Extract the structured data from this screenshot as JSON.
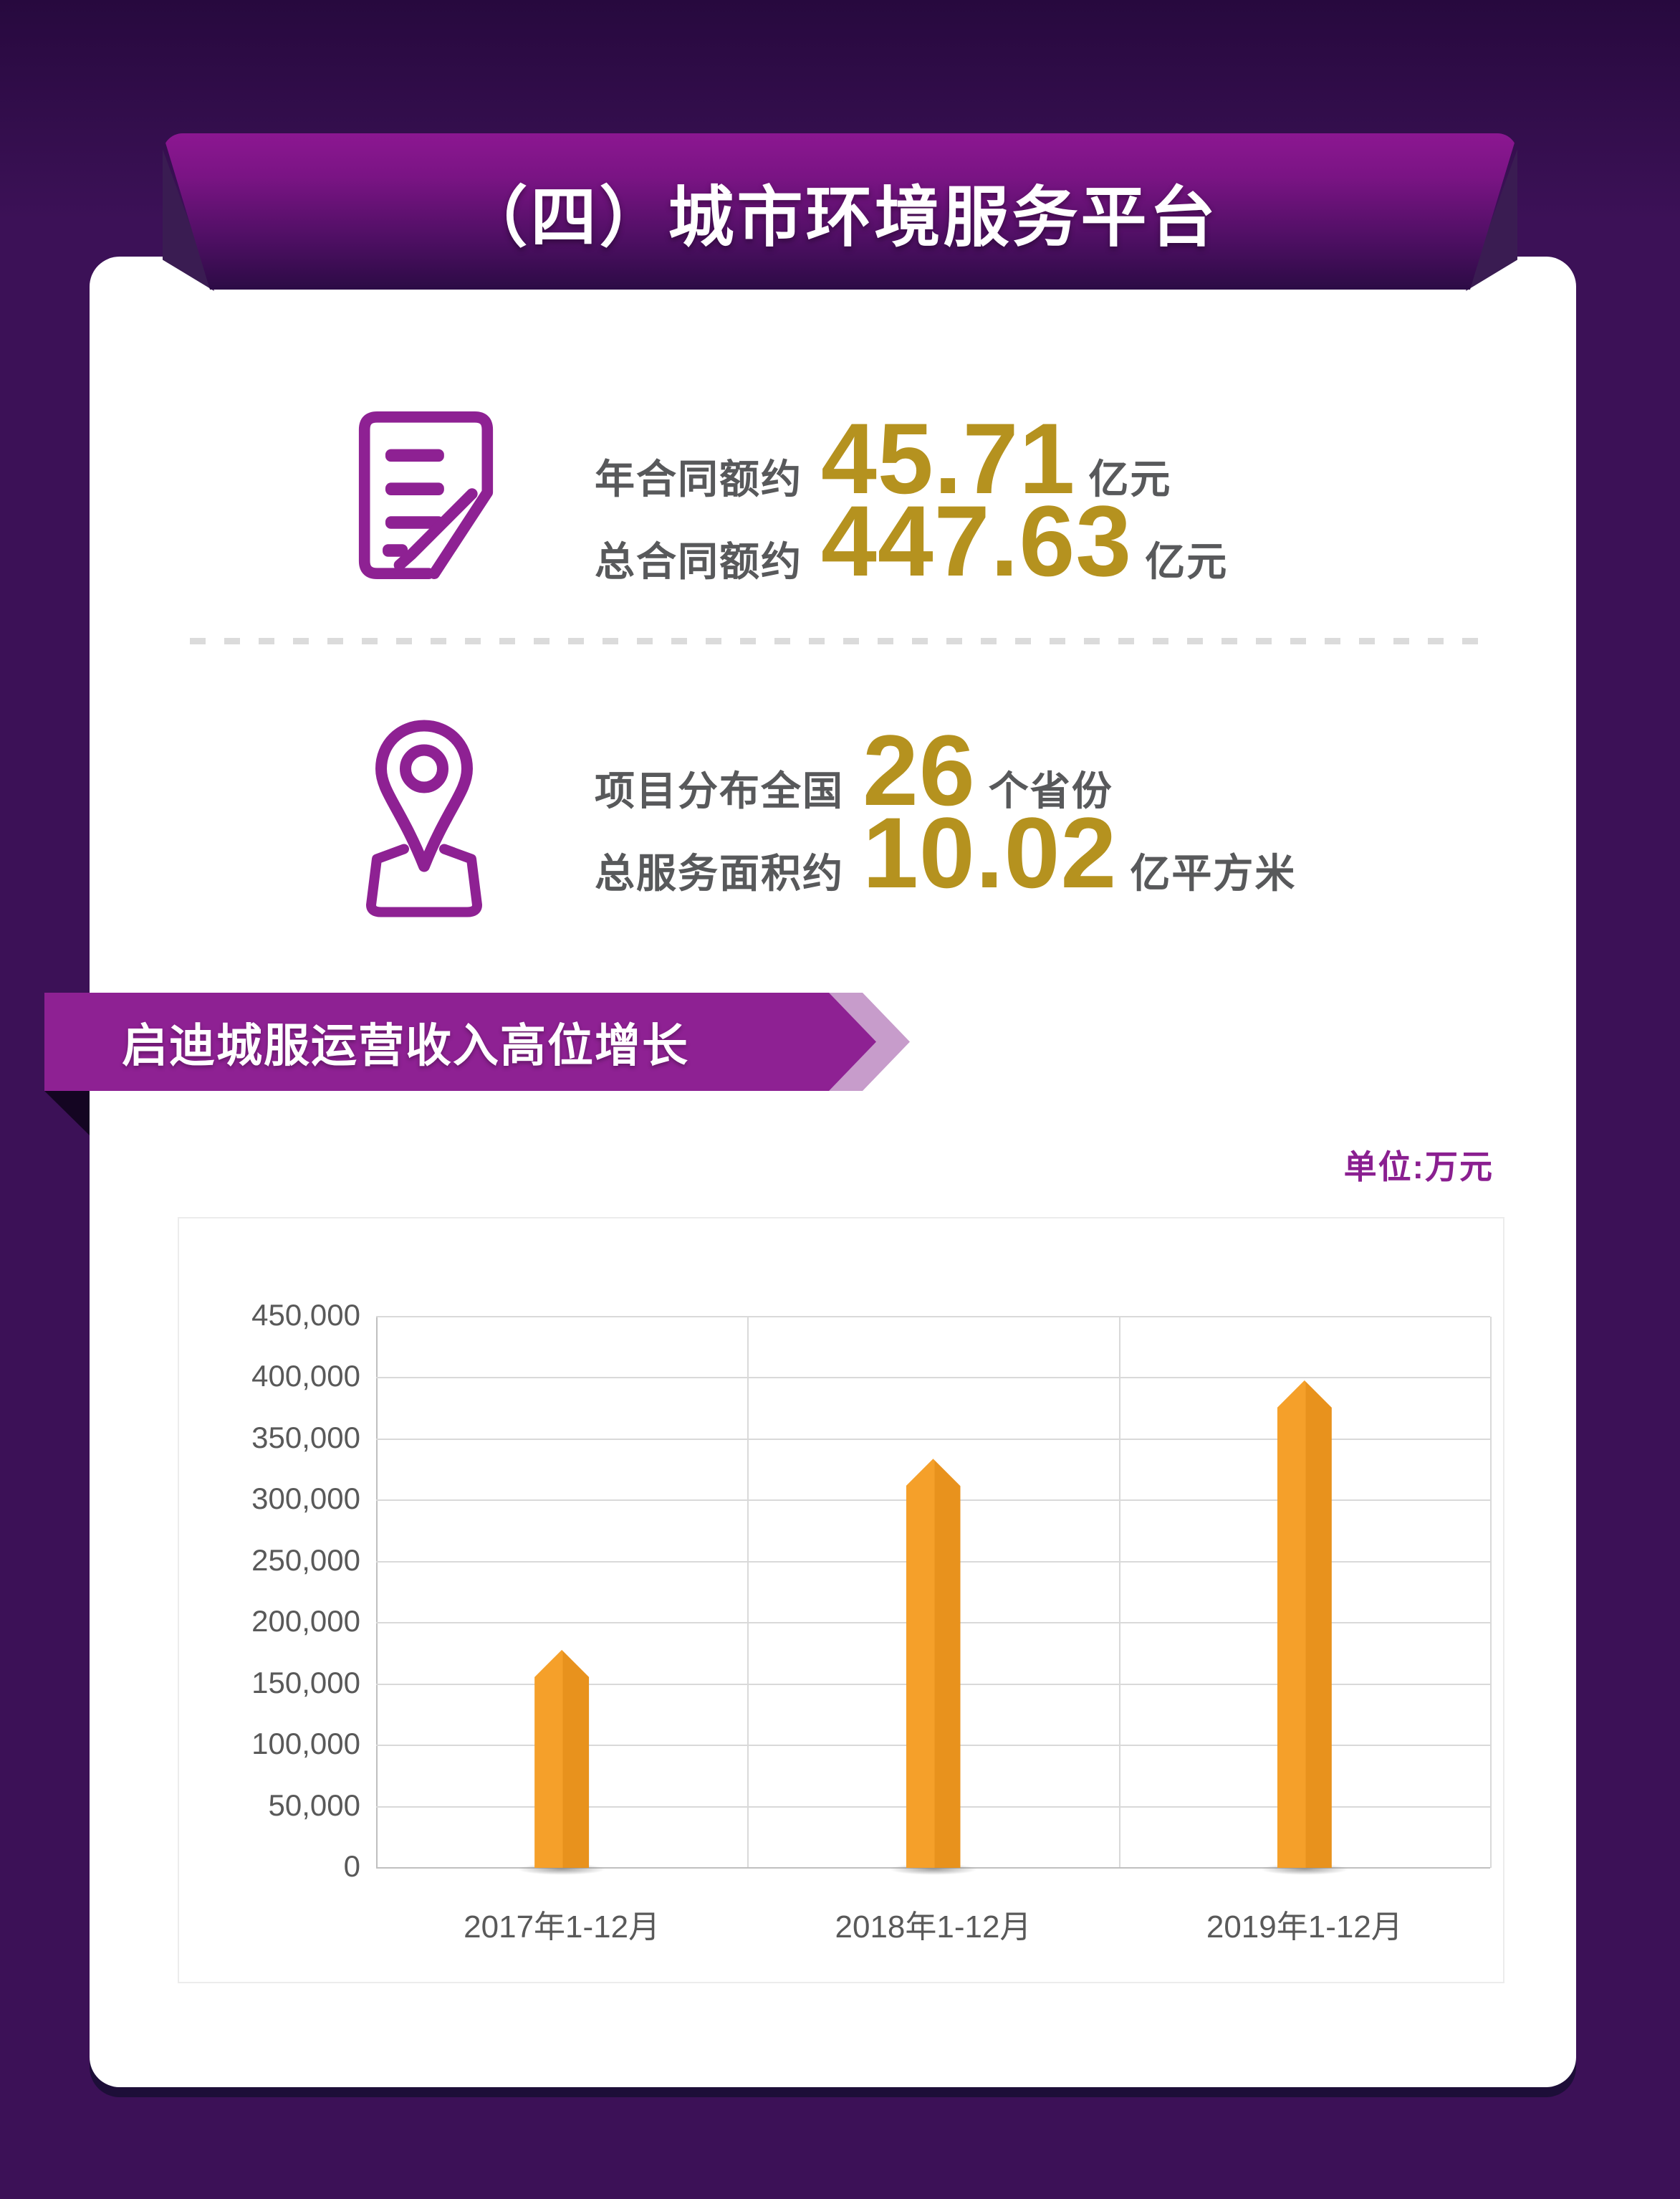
{
  "header": {
    "title": "（四）城市环境服务平台"
  },
  "stats": {
    "contract": {
      "icon": "document-pen-icon",
      "rows": [
        {
          "label": "年合同额约",
          "value": "45.71",
          "unit": "亿元"
        },
        {
          "label": "总合同额约",
          "value": "447.63",
          "unit": "亿元"
        }
      ]
    },
    "coverage": {
      "icon": "map-pin-icon",
      "rows": [
        {
          "label": "项目分布全国",
          "value": "26",
          "unit": "个省份"
        },
        {
          "label": "总服务面积约",
          "value": "10.02",
          "unit": "亿平方米"
        }
      ]
    }
  },
  "ribbon": {
    "title": "启迪城服运营收入高位增长"
  },
  "chart": {
    "unit_label": "单位:万元"
  },
  "chart_data": {
    "type": "bar",
    "title": "启迪城服运营收入高位增长",
    "categories": [
      "2017年1-12月",
      "2018年1-12月",
      "2019年1-12月"
    ],
    "values": [
      178000,
      334000,
      398000
    ],
    "xlabel": "",
    "ylabel": "万元",
    "ylim": [
      0,
      450000
    ],
    "ytick_step": 50000,
    "grid": true,
    "legend": false,
    "bar_color": "#F09A23"
  },
  "colors": {
    "accent_purple": "#8E2193",
    "light_chevron": "#C79CCB",
    "gold_number": "#B5921F",
    "gray_text": "#58595B",
    "bar_light": "#F5A02A",
    "bar_dark": "#E8921D",
    "background": "#3C1157"
  }
}
